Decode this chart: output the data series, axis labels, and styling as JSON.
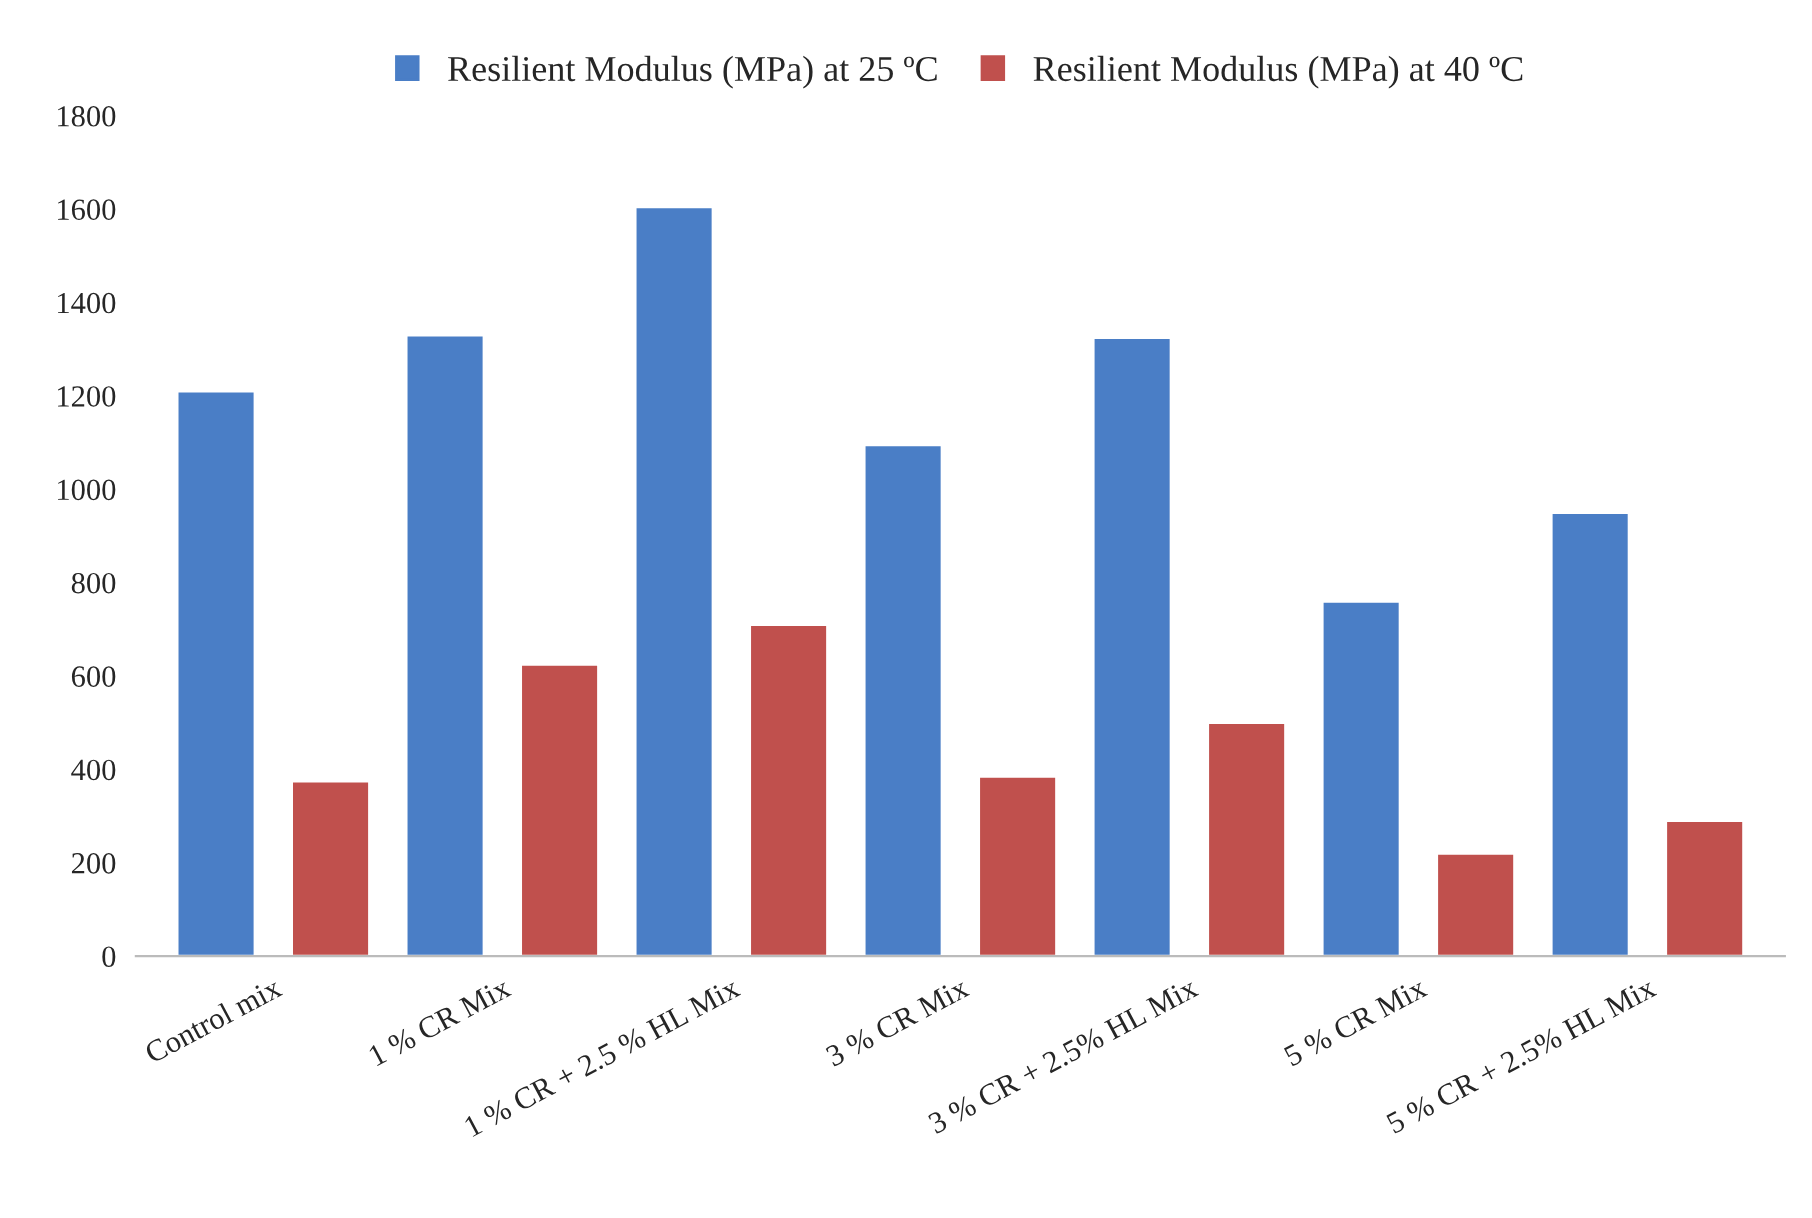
{
  "chart_data": {
    "type": "bar",
    "categories": [
      "Control mix",
      "1 % CR Mix",
      "1 % CR + 2.5 % HL Mix",
      "3 % CR Mix",
      "3 % CR + 2.5% HL Mix",
      "5 % CR Mix",
      "5 % CR + 2.5% HL Mix"
    ],
    "series": [
      {
        "name": "Resilient Modulus (MPa) at 25 ºC",
        "color": "#4a7ec6",
        "values": [
          1210,
          1330,
          1605,
          1095,
          1325,
          760,
          950
        ]
      },
      {
        "name": "Resilient Modulus (MPa) at 40 ºC",
        "color": "#c0504d",
        "values": [
          375,
          625,
          710,
          385,
          500,
          220,
          290
        ]
      }
    ],
    "ylim": [
      0,
      1800
    ],
    "yticks": [
      0,
      200,
      400,
      600,
      800,
      1000,
      1200,
      1400,
      1600,
      1800
    ],
    "grid": false,
    "legend": "top"
  }
}
